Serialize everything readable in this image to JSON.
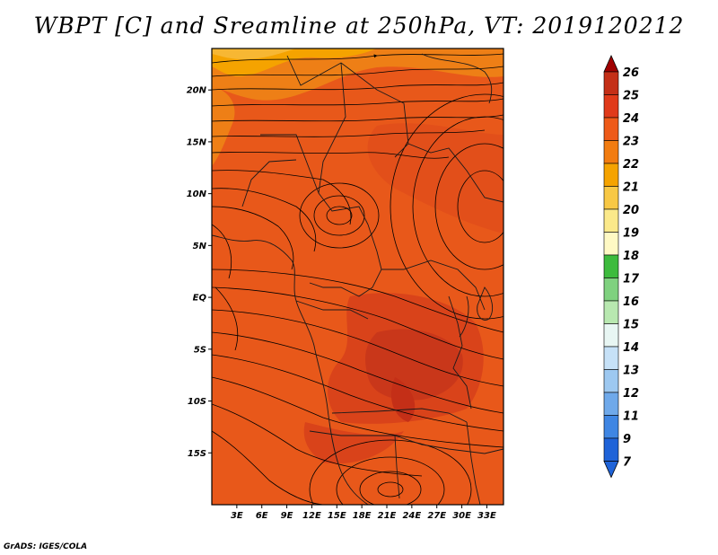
{
  "title": "WBPT [C] and Sreamline at 250hPa, VT: 2019120212",
  "credit": "GrADS: IGES/COLA",
  "map": {
    "lon_range": [
      0,
      35
    ],
    "lat_range": [
      -20,
      24
    ],
    "lon_ticks": [
      "3E",
      "6E",
      "9E",
      "12E",
      "15E",
      "18E",
      "21E",
      "24E",
      "27E",
      "30E",
      "33E"
    ],
    "lat_ticks": [
      "20N",
      "15N",
      "10N",
      "5N",
      "EQ",
      "5S",
      "10S",
      "15S"
    ],
    "field_colors": {
      "c21": "#f5a300",
      "c22": "#ee7f16",
      "c23": "#e8581a",
      "c24": "#d9431a",
      "c25": "#c42f17"
    }
  },
  "colorbar": {
    "labels": [
      "26",
      "25",
      "24",
      "23",
      "22",
      "21",
      "20",
      "19",
      "18",
      "17",
      "16",
      "15",
      "14",
      "13",
      "12",
      "11",
      "9",
      "7"
    ],
    "colors": [
      "#a00000",
      "#c42f17",
      "#e03a1a",
      "#ee5a18",
      "#f27c10",
      "#f5a300",
      "#f8c845",
      "#fbe98a",
      "#fff9c4",
      "#3dbb3d",
      "#7fd17f",
      "#b8e8b0",
      "#e8f6f3",
      "#c6e1f7",
      "#9dc8f0",
      "#6fa9ea",
      "#3f86e3",
      "#1f63d8"
    ]
  }
}
